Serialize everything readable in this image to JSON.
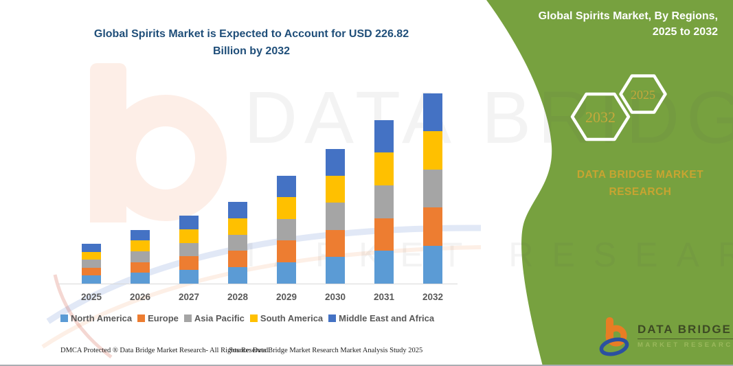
{
  "header": {
    "title_line1": "Global Spirits Market is Expected to Account for USD 226.82",
    "title_line2": "Billion by 2032"
  },
  "green_panel": {
    "background_color": "#77A13F",
    "title_line1": "Global Spirits Market, By Regions,",
    "title_line2": "2025 to 2032",
    "hexagon_years": [
      "2032",
      "2025"
    ],
    "brand_line1": "DATA BRIDGE MARKET",
    "brand_line2": "RESEARCH",
    "accent_gold": "#C8A431"
  },
  "chart_data": {
    "type": "bar",
    "stacked": true,
    "title": "Global Spirits Market is Expected to Account for USD 226.82 Billion by 2032",
    "unit": "USD Billion",
    "categories": [
      "2025",
      "2026",
      "2027",
      "2028",
      "2029",
      "2030",
      "2031",
      "2032"
    ],
    "series": [
      {
        "name": "North America",
        "color": "#5B9BD5",
        "values": [
          9.5,
          12.8,
          16.2,
          19.5,
          25.7,
          32.1,
          39.0,
          45.4
        ]
      },
      {
        "name": "Europe",
        "color": "#ED7D31",
        "values": [
          9.5,
          12.8,
          16.2,
          19.5,
          25.7,
          32.1,
          39.0,
          45.4
        ]
      },
      {
        "name": "Asia Pacific",
        "color": "#A5A5A5",
        "values": [
          9.5,
          12.8,
          16.2,
          19.5,
          25.7,
          32.1,
          39.0,
          45.4
        ]
      },
      {
        "name": "South America",
        "color": "#FFC000",
        "values": [
          9.5,
          12.8,
          16.2,
          19.5,
          25.7,
          32.1,
          39.0,
          45.4
        ]
      },
      {
        "name": "Middle East and Africa",
        "color": "#4472C4",
        "values": [
          9.5,
          12.8,
          16.2,
          19.5,
          25.7,
          32.1,
          39.0,
          45.4
        ]
      }
    ],
    "estimated_totals": [
      47.5,
      63.9,
      81.1,
      97.4,
      128.6,
      160.5,
      194.9,
      226.8
    ],
    "ylim": [
      0,
      240
    ],
    "y_axis_shown": false,
    "gridlines": false,
    "legend_position": "bottom",
    "axis_line_color": "#D9D9D9"
  },
  "watermark": {
    "line1": "DATA BRIDGE",
    "line2": "MARKET RESEARCH"
  },
  "logo": {
    "name": "DATA BRIDGE",
    "subtitle": "MARKET RESEARCH"
  },
  "footer": {
    "left": "DMCA Protected ® Data Bridge Market Research-  All Rights Reserved.",
    "right": "Source: Data Bridge Market Research  Market Analysis Study 2025"
  }
}
